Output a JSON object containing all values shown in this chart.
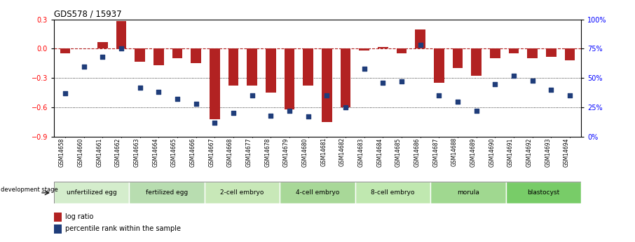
{
  "title": "GDS578 / 15937",
  "samples": [
    "GSM14658",
    "GSM14660",
    "GSM14661",
    "GSM14662",
    "GSM14663",
    "GSM14664",
    "GSM14665",
    "GSM14666",
    "GSM14667",
    "GSM14668",
    "GSM14677",
    "GSM14678",
    "GSM14679",
    "GSM14680",
    "GSM14681",
    "GSM14682",
    "GSM14683",
    "GSM14684",
    "GSM14685",
    "GSM14686",
    "GSM14687",
    "GSM14688",
    "GSM14689",
    "GSM14690",
    "GSM14691",
    "GSM14692",
    "GSM14693",
    "GSM14694"
  ],
  "log_ratio": [
    -0.05,
    0.0,
    0.07,
    0.28,
    -0.13,
    -0.17,
    -0.1,
    -0.15,
    -0.72,
    -0.38,
    -0.38,
    -0.45,
    -0.62,
    -0.38,
    -0.75,
    -0.6,
    -0.02,
    0.02,
    -0.05,
    0.2,
    -0.35,
    -0.2,
    -0.28,
    -0.1,
    -0.05,
    -0.1,
    -0.08,
    -0.12
  ],
  "percentile_rank": [
    37,
    60,
    68,
    75,
    42,
    38,
    32,
    28,
    12,
    20,
    35,
    18,
    22,
    17,
    35,
    25,
    58,
    46,
    47,
    78,
    35,
    30,
    22,
    45,
    52,
    48,
    40,
    35
  ],
  "stages": [
    {
      "label": "unfertilized egg",
      "start": 0,
      "end": 4
    },
    {
      "label": "fertilized egg",
      "start": 4,
      "end": 8
    },
    {
      "label": "2-cell embryo",
      "start": 8,
      "end": 12
    },
    {
      "label": "4-cell embryo",
      "start": 12,
      "end": 16
    },
    {
      "label": "8-cell embryo",
      "start": 16,
      "end": 20
    },
    {
      "label": "morula",
      "start": 20,
      "end": 24
    },
    {
      "label": "blastocyst",
      "start": 24,
      "end": 28
    }
  ],
  "stage_colors": [
    "#d4edcc",
    "#b8ddb0",
    "#c8e8b8",
    "#a8d898",
    "#c0e8b0",
    "#a0d890",
    "#78cc68"
  ],
  "bar_color": "#b22222",
  "dot_color": "#1f3d7a",
  "dashed_line_color": "#b22222",
  "ylim_left": [
    -0.9,
    0.3
  ],
  "ylim_right": [
    0,
    100
  ],
  "yticks_left": [
    -0.9,
    -0.6,
    -0.3,
    0.0,
    0.3
  ],
  "yticks_right": [
    0,
    25,
    50,
    75,
    100
  ],
  "background_color": "#ffffff",
  "legend_label_bar": "log ratio",
  "legend_label_dot": "percentile rank within the sample"
}
